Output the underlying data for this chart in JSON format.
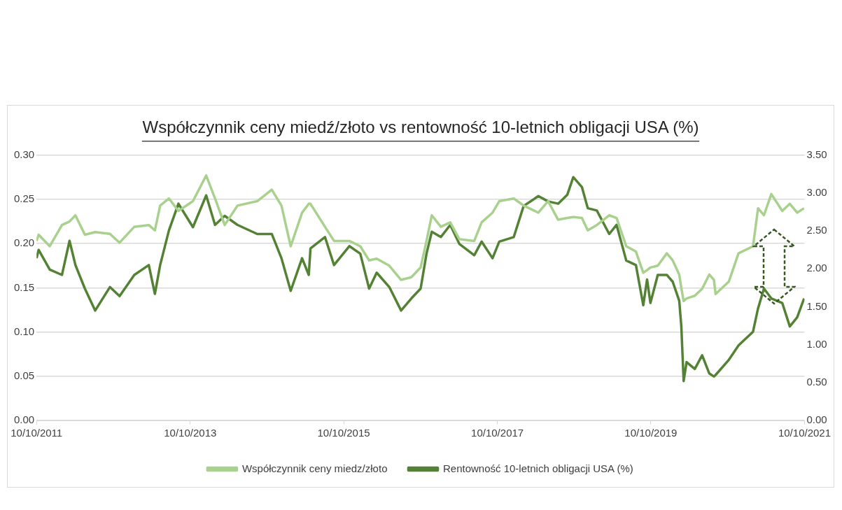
{
  "chart_data": {
    "type": "line",
    "title": "Współczynnik ceny miedź/złoto vs rentowność 10-letnich obligacji USA (%)",
    "x": [
      "2011-10-10",
      "2011-10-20",
      "2011-12-12",
      "2012-02-08",
      "2012-03-15",
      "2012-04-12",
      "2012-05-27",
      "2012-07-15",
      "2012-09-23",
      "2012-11-08",
      "2013-01-17",
      "2013-03-27",
      "2013-04-25",
      "2013-05-20",
      "2013-07-01",
      "2013-08-15",
      "2013-10-23",
      "2013-12-25",
      "2014-02-05",
      "2014-03-23",
      "2014-05-23",
      "2014-08-25",
      "2014-11-02",
      "2014-12-18",
      "2015-01-31",
      "2015-03-26",
      "2015-04-27",
      "2015-05-05",
      "2015-07-13",
      "2015-08-25",
      "2015-11-06",
      "2015-12-28",
      "2016-02-08",
      "2016-03-15",
      "2016-05-14",
      "2016-07-09",
      "2016-08-27",
      "2016-10-10",
      "2016-11-07",
      "2016-12-02",
      "2017-01-14",
      "2017-02-28",
      "2017-04-12",
      "2017-06-22",
      "2017-07-27",
      "2017-09-17",
      "2017-10-19",
      "2017-12-27",
      "2018-02-12",
      "2018-04-23",
      "2018-06-08",
      "2018-07-26",
      "2018-09-08",
      "2018-10-06",
      "2018-11-16",
      "2018-12-14",
      "2019-01-26",
      "2019-03-26",
      "2019-04-30",
      "2019-06-15",
      "2019-07-31",
      "2019-09-04",
      "2019-09-22",
      "2019-10-08",
      "2019-11-12",
      "2019-12-25",
      "2020-01-22",
      "2020-02-22",
      "2020-03-03",
      "2020-03-14",
      "2020-03-28",
      "2020-05-06",
      "2020-06-10",
      "2020-07-14",
      "2020-08-05",
      "2020-08-13",
      "2020-10-15",
      "2020-11-30",
      "2021-02-07",
      "2021-03-03",
      "2021-03-31",
      "2021-05-05",
      "2021-06-26",
      "2021-08-01",
      "2021-09-05",
      "2021-10-08"
    ],
    "series": [
      {
        "name": "Współczynnik ceny miedz/złoto",
        "color": "#a9d18e",
        "values": [
          0.203,
          0.21,
          0.197,
          0.221,
          0.225,
          0.232,
          0.21,
          0.213,
          0.211,
          0.201,
          0.219,
          0.221,
          0.215,
          0.243,
          0.251,
          0.237,
          0.248,
          0.277,
          0.251,
          0.221,
          0.243,
          0.248,
          0.261,
          0.243,
          0.197,
          0.235,
          0.245,
          0.245,
          0.219,
          0.203,
          0.203,
          0.197,
          0.181,
          0.183,
          0.175,
          0.159,
          0.162,
          0.173,
          0.203,
          0.232,
          0.219,
          0.224,
          0.205,
          0.203,
          0.224,
          0.235,
          0.248,
          0.251,
          0.243,
          0.235,
          0.248,
          0.227,
          0.229,
          0.23,
          0.229,
          0.215,
          0.221,
          0.232,
          0.229,
          0.197,
          0.191,
          0.167,
          0.17,
          0.173,
          0.175,
          0.189,
          0.181,
          0.165,
          0.15,
          0.135,
          0.138,
          0.141,
          0.149,
          0.165,
          0.159,
          0.143,
          0.157,
          0.189,
          0.197,
          0.24,
          0.232,
          0.256,
          0.237,
          0.245,
          0.235,
          0.24
        ]
      },
      {
        "name": "Rentowność 10-letnich obligacji USA (%)",
        "color": "#548235",
        "axis": "y2",
        "values": [
          2.14,
          2.25,
          1.99,
          1.92,
          2.37,
          2.05,
          1.74,
          1.45,
          1.76,
          1.64,
          1.92,
          2.05,
          1.67,
          2.05,
          2.51,
          2.86,
          2.55,
          2.97,
          2.58,
          2.7,
          2.58,
          2.46,
          2.46,
          2.14,
          1.71,
          2.14,
          1.92,
          2.27,
          2.42,
          2.05,
          2.3,
          2.2,
          1.74,
          1.95,
          1.76,
          1.45,
          1.61,
          1.74,
          2.2,
          2.49,
          2.42,
          2.58,
          2.33,
          2.18,
          2.36,
          2.14,
          2.36,
          2.42,
          2.83,
          2.96,
          2.89,
          2.86,
          2.98,
          3.21,
          3.08,
          2.8,
          2.77,
          2.46,
          2.58,
          2.11,
          2.05,
          1.52,
          1.86,
          1.55,
          1.92,
          1.92,
          1.83,
          1.58,
          1.24,
          0.52,
          0.77,
          0.68,
          0.86,
          0.62,
          0.58,
          0.6,
          0.8,
          0.99,
          1.17,
          1.48,
          1.74,
          1.61,
          1.55,
          1.24,
          1.36,
          1.61
        ]
      }
    ],
    "ylim": [
      0,
      0.3
    ],
    "yticks": [
      {
        "value": 0,
        "label": "0.00"
      },
      {
        "value": 0.05,
        "label": "0.05"
      },
      {
        "value": 0.1,
        "label": "0.10"
      },
      {
        "value": 0.15,
        "label": "0.15"
      },
      {
        "value": 0.2,
        "label": "0.20"
      },
      {
        "value": 0.25,
        "label": "0.25"
      },
      {
        "value": 0.3,
        "label": "0.30"
      }
    ],
    "y2lim": [
      0,
      3.5
    ],
    "y2ticks": [
      {
        "value": 0,
        "label": "0.00"
      },
      {
        "value": 0.5,
        "label": "0.50"
      },
      {
        "value": 1,
        "label": "1.00"
      },
      {
        "value": 1.5,
        "label": "1.50"
      },
      {
        "value": 2,
        "label": "2.00"
      },
      {
        "value": 2.5,
        "label": "2.50"
      },
      {
        "value": 3,
        "label": "3.00"
      },
      {
        "value": 3.5,
        "label": "3.50"
      }
    ],
    "xlim": [
      "2011-10-10",
      "2021-10-10"
    ],
    "xticks": [
      {
        "value": "2011-10-10",
        "label": "10/10/2011"
      },
      {
        "value": "2013-10-10",
        "label": "10/10/2013"
      },
      {
        "value": "2015-10-10",
        "label": "10/10/2015"
      },
      {
        "value": "2017-10-10",
        "label": "10/10/2017"
      },
      {
        "value": "2019-10-10",
        "label": "10/10/2019"
      },
      {
        "value": "2021-10-10",
        "label": "10/10/2021"
      }
    ],
    "grid": "y",
    "legend": "bottom",
    "marker": "none",
    "line_style": "solid"
  }
}
